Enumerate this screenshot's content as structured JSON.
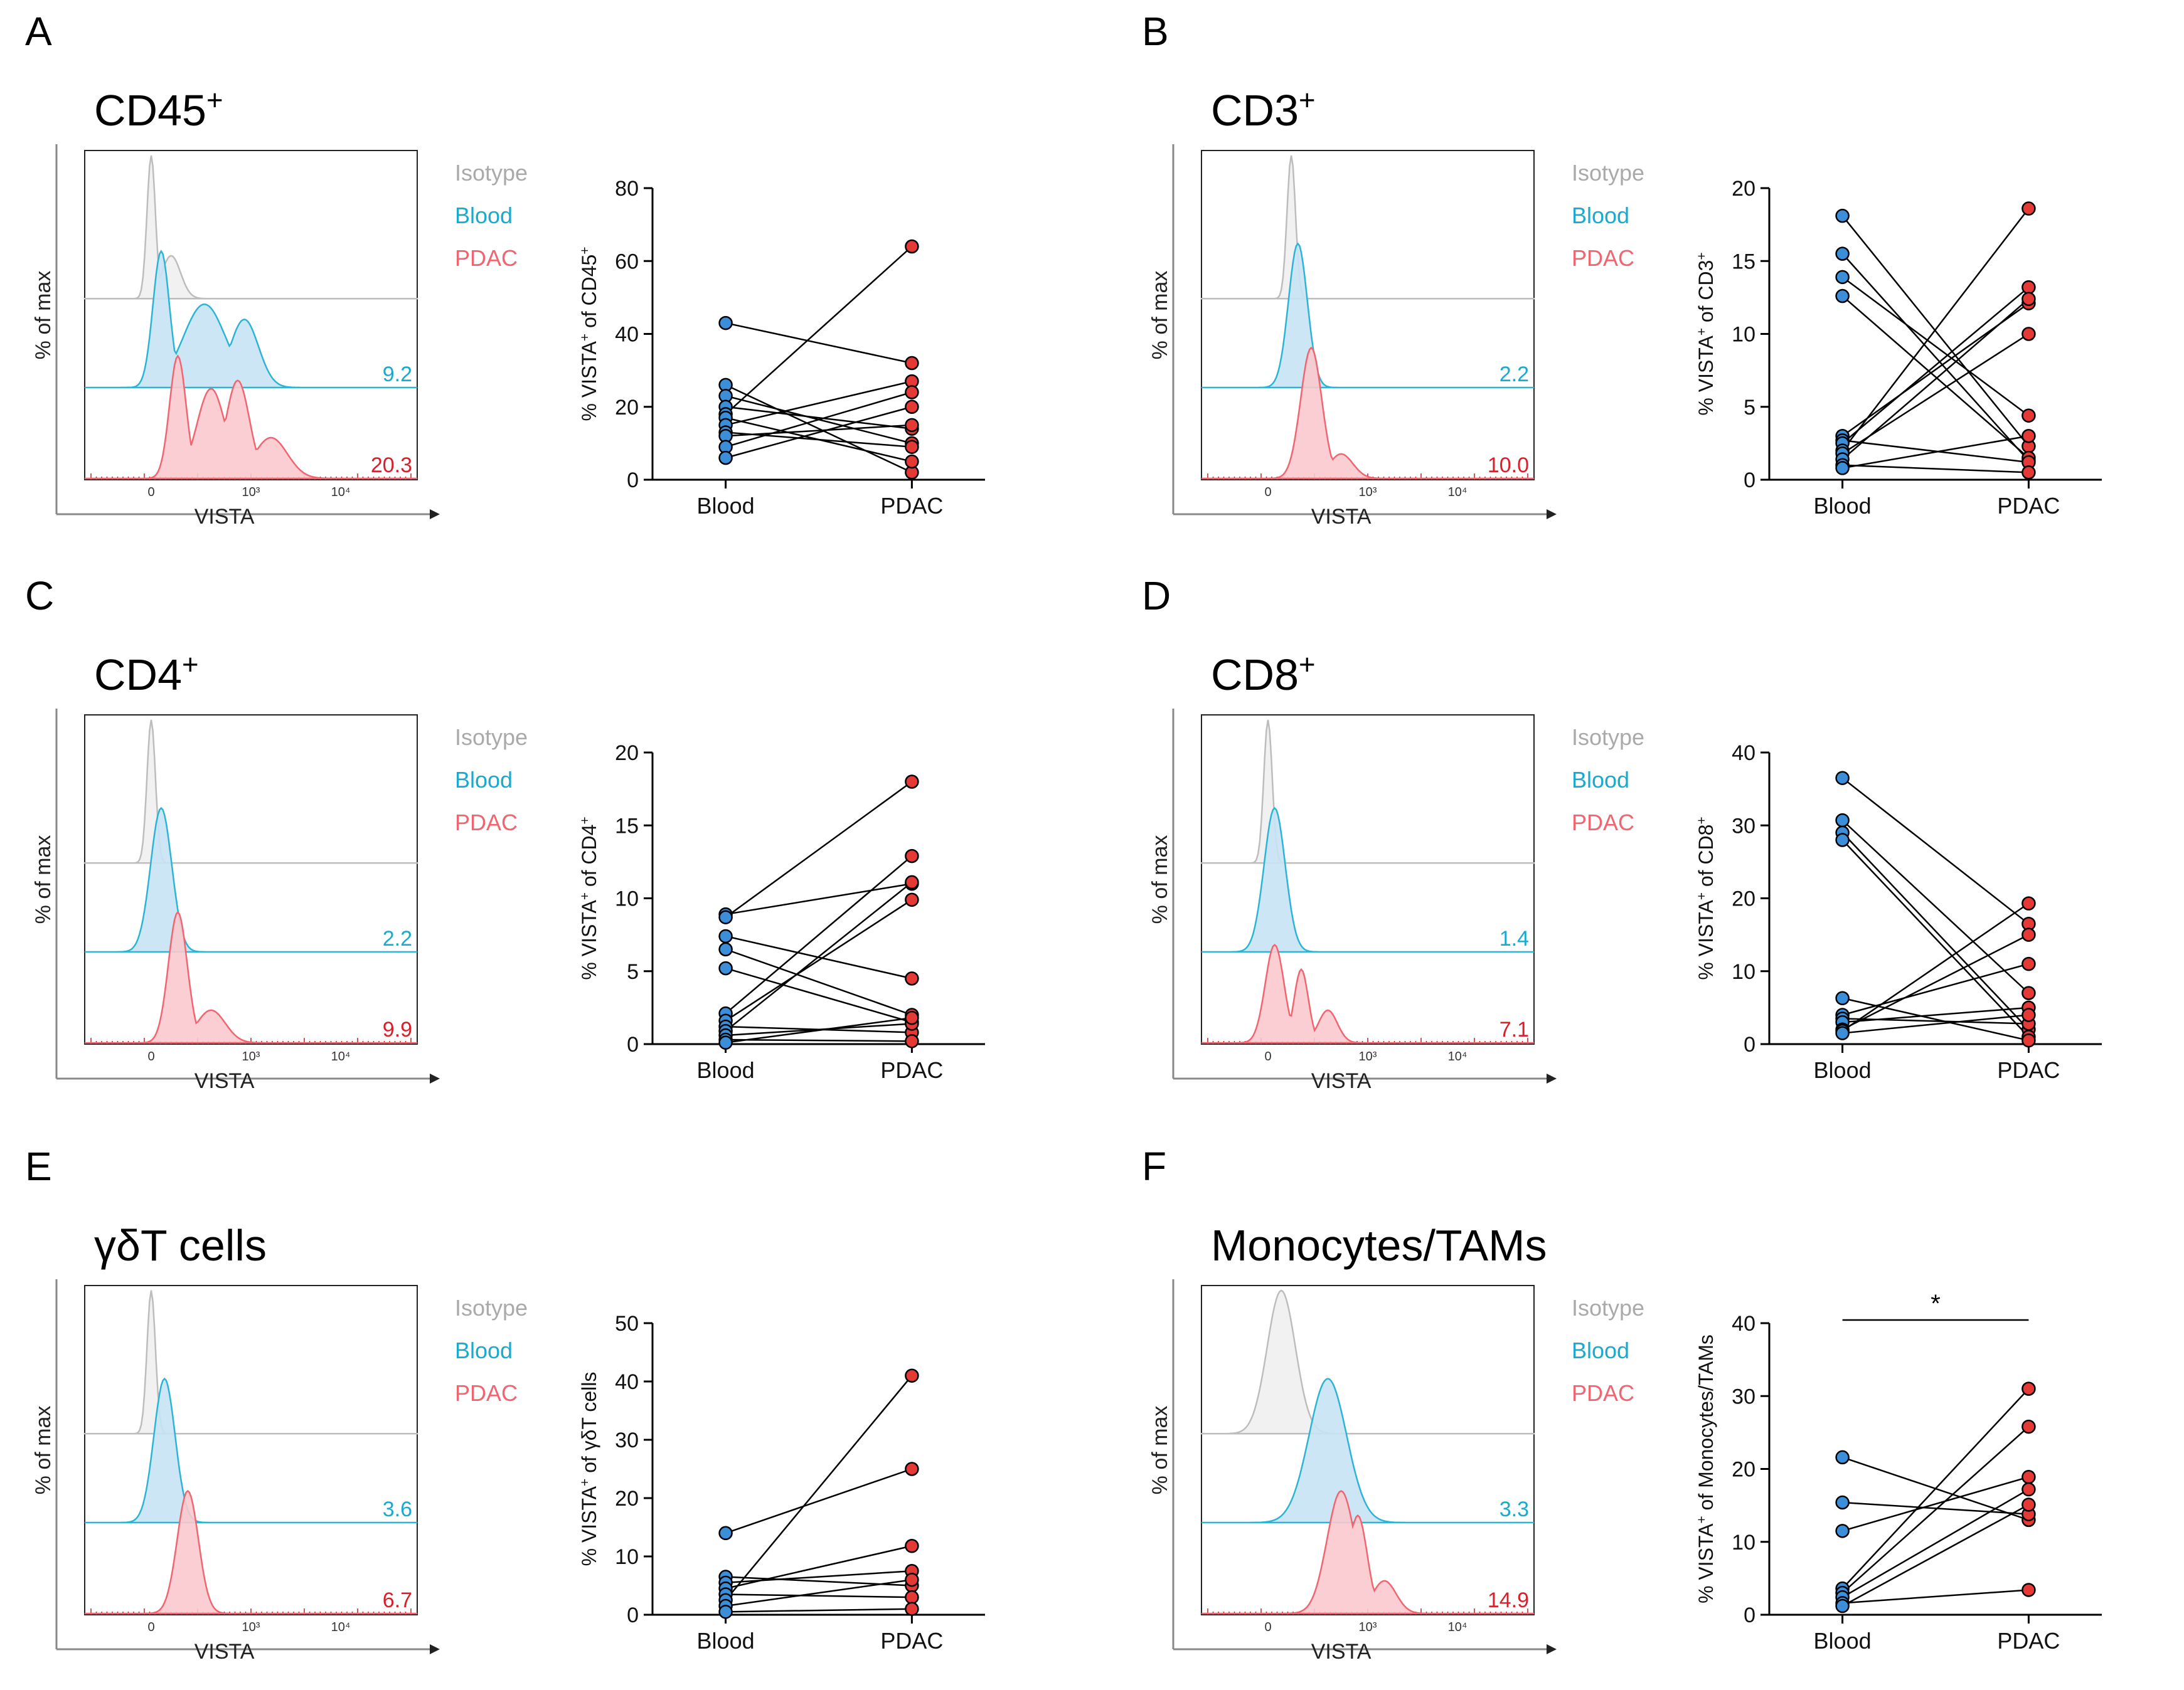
{
  "colors": {
    "isotype": "#bdbdbd",
    "blood": "#2bb4d6",
    "blood_fill": "#c7e3f5",
    "pdac": "#f0656f",
    "pdac_fill": "#f9c9cd",
    "blood_point": "#3d8ed8",
    "pdac_point": "#e53935",
    "mfi_blood": "#1aa9cf",
    "mfi_pdac": "#d8202b"
  },
  "legend": {
    "isotype": "Isotype",
    "blood": "Blood",
    "pdac": "PDAC"
  },
  "hist_axes": {
    "ylabel": "% of max",
    "xlabel": "VISTA",
    "tick_0": "0",
    "tick_3": "10³",
    "tick_4": "10⁴"
  },
  "chart_data": [
    {
      "type": "line",
      "panel": "A",
      "title": "CD45",
      "title_sup": "+",
      "mfi": {
        "blood": "9.2",
        "pdac": "20.3"
      },
      "ylabel": "% VISTA",
      "ylabel_sup": "+",
      "ylabel_suffix": " of CD45",
      "ylabel_suffix_sup": "+",
      "ylim": [
        0,
        80
      ],
      "yticks": [
        0,
        20,
        40,
        60,
        80
      ],
      "categories": [
        "Blood",
        "PDAC"
      ],
      "pairs": [
        [
          43,
          32
        ],
        [
          26,
          2
        ],
        [
          23,
          10
        ],
        [
          20,
          14
        ],
        [
          18,
          64
        ],
        [
          17,
          5
        ],
        [
          15,
          27
        ],
        [
          13,
          9
        ],
        [
          12,
          15
        ],
        [
          9,
          24
        ],
        [
          6,
          20
        ]
      ],
      "significance": ""
    },
    {
      "type": "line",
      "panel": "B",
      "title": "CD3",
      "title_sup": "+",
      "mfi": {
        "blood": "2.2",
        "pdac": "10.0"
      },
      "ylabel": "% VISTA",
      "ylabel_sup": "+",
      "ylabel_suffix": " of CD3",
      "ylabel_suffix_sup": "+",
      "ylim": [
        0,
        20
      ],
      "yticks": [
        0,
        5,
        10,
        15,
        20
      ],
      "categories": [
        "Blood",
        "PDAC"
      ],
      "pairs": [
        [
          18.1,
          2.3
        ],
        [
          15.5,
          1.3
        ],
        [
          13.9,
          4.4
        ],
        [
          12.6,
          1.5
        ],
        [
          3.0,
          12.1
        ],
        [
          2.7,
          1.2
        ],
        [
          2.5,
          13.2
        ],
        [
          2.0,
          18.6
        ],
        [
          1.8,
          10.0
        ],
        [
          1.4,
          12.4
        ],
        [
          1.0,
          0.5
        ],
        [
          0.8,
          3.0
        ]
      ],
      "significance": ""
    },
    {
      "type": "line",
      "panel": "C",
      "title": "CD4",
      "title_sup": "+",
      "mfi": {
        "blood": "2.2",
        "pdac": "9.9"
      },
      "ylabel": "% VISTA",
      "ylabel_sup": "+",
      "ylabel_suffix": " of CD4",
      "ylabel_suffix_sup": "+",
      "ylim": [
        0,
        20
      ],
      "yticks": [
        0,
        5,
        10,
        15,
        20
      ],
      "categories": [
        "Blood",
        "PDAC"
      ],
      "pairs": [
        [
          8.9,
          11.0
        ],
        [
          8.7,
          18.0
        ],
        [
          7.4,
          4.5
        ],
        [
          6.5,
          2.0
        ],
        [
          5.2,
          1.5
        ],
        [
          2.1,
          12.9
        ],
        [
          1.6,
          9.9
        ],
        [
          1.2,
          0.8
        ],
        [
          0.9,
          11.1
        ],
        [
          0.6,
          1.4
        ],
        [
          0.3,
          0.2
        ],
        [
          0.1,
          1.8
        ]
      ],
      "significance": ""
    },
    {
      "type": "line",
      "panel": "D",
      "title": "CD8",
      "title_sup": "+",
      "mfi": {
        "blood": "1.4",
        "pdac": "7.1"
      },
      "ylabel": "% VISTA",
      "ylabel_sup": "+",
      "ylabel_suffix": " of CD8",
      "ylabel_suffix_sup": "+",
      "ylim": [
        0,
        40
      ],
      "yticks": [
        0,
        10,
        20,
        30,
        40
      ],
      "categories": [
        "Blood",
        "PDAC"
      ],
      "pairs": [
        [
          36.5,
          16.5
        ],
        [
          30.7,
          7.0
        ],
        [
          29.0,
          2.0
        ],
        [
          28.0,
          1.0
        ],
        [
          6.3,
          0.5
        ],
        [
          4.0,
          11.0
        ],
        [
          3.5,
          2.8
        ],
        [
          3.0,
          5.0
        ],
        [
          2.0,
          15.0
        ],
        [
          1.8,
          19.3
        ],
        [
          1.5,
          4.0
        ]
      ],
      "significance": ""
    },
    {
      "type": "line",
      "panel": "E",
      "title": "γδT cells",
      "title_sup": "",
      "mfi": {
        "blood": "3.6",
        "pdac": "6.7"
      },
      "ylabel": "% VISTA",
      "ylabel_sup": "+",
      "ylabel_suffix": " of γδT cells",
      "ylabel_suffix_sup": "",
      "ylim": [
        0,
        50
      ],
      "yticks": [
        0,
        10,
        20,
        30,
        40,
        50
      ],
      "categories": [
        "Blood",
        "PDAC"
      ],
      "pairs": [
        [
          14.0,
          25.0
        ],
        [
          6.5,
          5.0
        ],
        [
          5.5,
          7.5
        ],
        [
          4.5,
          11.8
        ],
        [
          3.5,
          3.0
        ],
        [
          2.5,
          41.0
        ],
        [
          1.5,
          6.0
        ],
        [
          0.5,
          1.0
        ]
      ],
      "significance": ""
    },
    {
      "type": "line",
      "panel": "F",
      "title": "Monocytes/TAMs",
      "title_sup": "",
      "mfi": {
        "blood": "3.3",
        "pdac": "14.9"
      },
      "ylabel": "% VISTA",
      "ylabel_sup": "+",
      "ylabel_suffix": " of Monocytes/TAMs",
      "ylabel_suffix_sup": "",
      "ylim": [
        0,
        40
      ],
      "yticks": [
        0,
        10,
        20,
        30,
        40
      ],
      "categories": [
        "Blood",
        "PDAC"
      ],
      "pairs": [
        [
          21.6,
          13.0
        ],
        [
          15.4,
          13.8
        ],
        [
          11.5,
          18.9
        ],
        [
          3.6,
          31.0
        ],
        [
          3.0,
          25.8
        ],
        [
          2.4,
          17.2
        ],
        [
          1.6,
          3.4
        ],
        [
          1.2,
          15.1
        ]
      ],
      "significance": "*"
    }
  ]
}
